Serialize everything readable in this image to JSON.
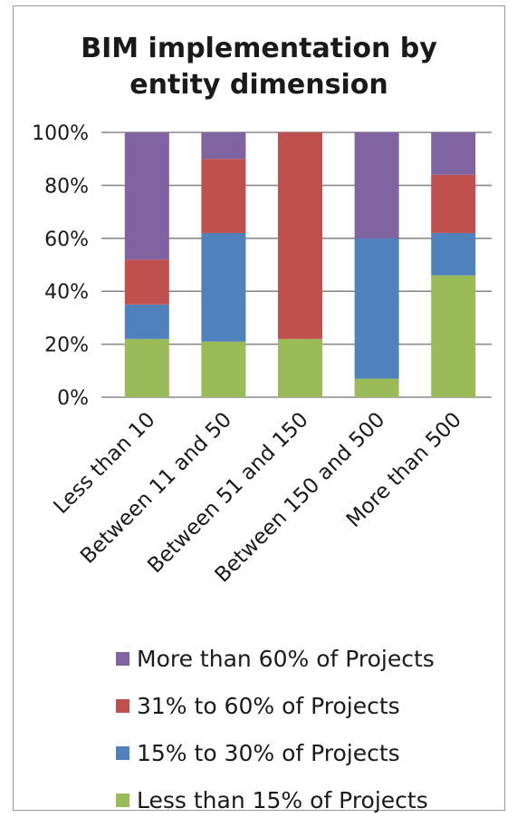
{
  "chart_data": {
    "type": "bar",
    "stacked": true,
    "title": [
      "BIM implementation by",
      "entity dimension"
    ],
    "categories": [
      "Less than 10",
      "Between 11 and 50",
      "Between 51 and 150",
      "Between 150 and 500",
      "More than 500"
    ],
    "y_ticks": [
      "0%",
      "20%",
      "40%",
      "60%",
      "80%",
      "100%"
    ],
    "ylim": [
      0,
      100
    ],
    "grid": true,
    "legend_position": "bottom",
    "series": [
      {
        "name": "Less than 15% of Projects",
        "color": "#9bbb59",
        "values": [
          22,
          21,
          22,
          7,
          46
        ]
      },
      {
        "name": "15% to 30% of Projects",
        "color": "#4f81bd",
        "values": [
          13,
          41,
          0,
          53,
          16
        ]
      },
      {
        "name": "31% to 60% of Projects",
        "color": "#c0504d",
        "values": [
          17,
          28,
          78,
          0,
          22
        ]
      },
      {
        "name": "More than 60% of Projects",
        "color": "#8064a2",
        "values": [
          48,
          10,
          0,
          40,
          16
        ]
      }
    ]
  }
}
